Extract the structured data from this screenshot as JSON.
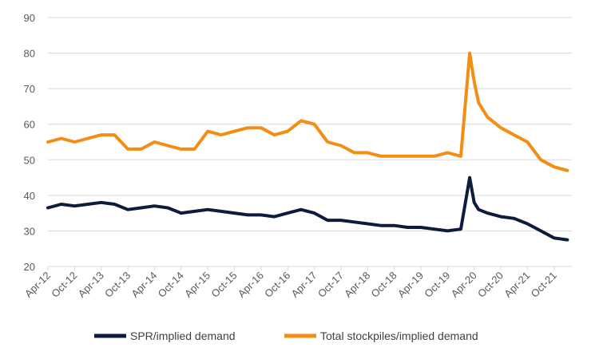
{
  "chart_data": {
    "type": "line",
    "title": "",
    "xlabel": "",
    "ylabel": "",
    "ylim": [
      20,
      90
    ],
    "yticks": [
      20,
      30,
      40,
      50,
      60,
      70,
      80,
      90
    ],
    "x_tick_labels": [
      "Apr-12",
      "Oct-12",
      "Apr-13",
      "Oct-13",
      "Apr-14",
      "Oct-14",
      "Apr-15",
      "Oct-15",
      "Apr-16",
      "Oct-16",
      "Apr-17",
      "Oct-17",
      "Apr-18",
      "Oct-18",
      "Apr-19",
      "Oct-19",
      "Apr-20",
      "Oct-20",
      "Apr-21",
      "Oct-21"
    ],
    "grid": true,
    "legend_position": "bottom",
    "x": [
      "Apr-12",
      "Jul-12",
      "Oct-12",
      "Jan-13",
      "Apr-13",
      "Jul-13",
      "Oct-13",
      "Jan-14",
      "Apr-14",
      "Jul-14",
      "Oct-14",
      "Jan-15",
      "Apr-15",
      "Jul-15",
      "Oct-15",
      "Jan-16",
      "Apr-16",
      "Jul-16",
      "Oct-16",
      "Jan-17",
      "Apr-17",
      "Jul-17",
      "Oct-17",
      "Jan-18",
      "Apr-18",
      "Jul-18",
      "Oct-18",
      "Jan-19",
      "Apr-19",
      "Jul-19",
      "Oct-19",
      "Jan-20",
      "Mar-20",
      "Apr-20",
      "May-20",
      "Jul-20",
      "Oct-20",
      "Jan-21",
      "Apr-21",
      "Jul-21",
      "Oct-21",
      "Jan-22"
    ],
    "series": [
      {
        "name": "SPR/implied demand",
        "color": "#0d1b3e",
        "values": [
          36.5,
          37.5,
          37,
          37.5,
          38,
          37.5,
          36,
          36.5,
          37,
          36.5,
          35,
          35.5,
          36,
          35.5,
          35,
          34.5,
          34.5,
          34,
          35,
          36,
          35,
          33,
          33,
          32.5,
          32,
          31.5,
          31.5,
          31,
          31,
          30.5,
          30,
          30.5,
          45,
          38,
          36,
          35,
          34,
          33.5,
          32,
          30,
          28,
          27.5
        ]
      },
      {
        "name": "Total stockpiles/implied demand",
        "color": "#f28e13",
        "values": [
          55,
          56,
          55,
          56,
          57,
          57,
          53,
          53,
          55,
          54,
          53,
          53,
          58,
          57,
          58,
          59,
          59,
          57,
          58,
          61,
          60,
          55,
          54,
          52,
          52,
          51,
          51,
          51,
          51,
          51,
          52,
          51,
          80,
          72,
          66,
          62,
          59,
          57,
          55,
          50,
          48,
          47
        ]
      }
    ]
  }
}
